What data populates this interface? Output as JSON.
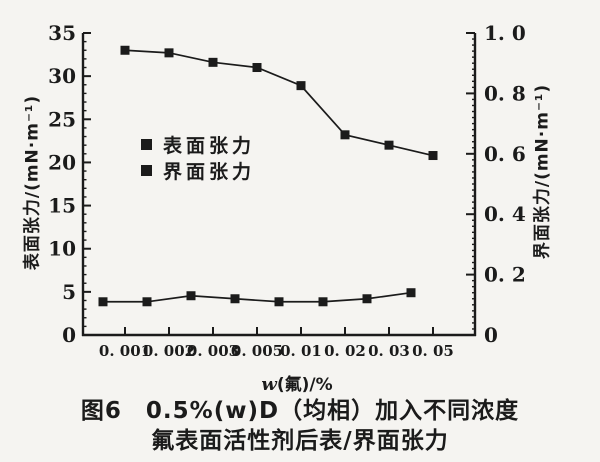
{
  "figure": {
    "background": "#f5f4f1",
    "ink": "#1b1b1b"
  },
  "chart_data": {
    "type": "line",
    "title": "图6 0.5%(w)D（均相）加入不同浓度氟表面活性剂后表/界面张力",
    "x_tick_labels": [
      "0.001",
      "0.002",
      "0.003",
      "0.005",
      "0.01",
      "0.02",
      "0.03",
      "0.05"
    ],
    "xlabel": "w(氟)/%",
    "xlabel_var": "w",
    "xlabel_rest": "(氟)/%",
    "grid": false,
    "legend_position": "inside-upper-left",
    "left_axis": {
      "label": "表面张力/(mN·m⁻¹)",
      "range": [
        0,
        35
      ],
      "ticks": [
        0,
        5,
        10,
        15,
        20,
        25,
        30,
        35
      ],
      "minor_step": 1
    },
    "right_axis": {
      "label": "界面张力/(mN·m⁻¹)",
      "range": [
        0,
        1.0
      ],
      "ticks": [
        "0",
        "0.2",
        "0.4",
        "0.6",
        "0.8",
        "1.0"
      ],
      "minor_step": 0.02
    },
    "series": [
      {
        "name": "表面张力",
        "axis": "left",
        "marker": "square",
        "index_offset": 0,
        "values": [
          33.0,
          32.7,
          31.6,
          31.0,
          28.9,
          23.2,
          22.0,
          20.8
        ]
      },
      {
        "name": "界面张力",
        "axis": "right",
        "marker": "square",
        "index_offset": -0.5,
        "values": [
          0.11,
          0.11,
          0.13,
          0.12,
          0.11,
          0.11,
          0.12,
          0.14
        ]
      }
    ]
  },
  "caption": {
    "line1": "图6　0.5%(w)D（均相）加入不同浓度",
    "line2": "氟表面活性剂后表/界面张力"
  }
}
